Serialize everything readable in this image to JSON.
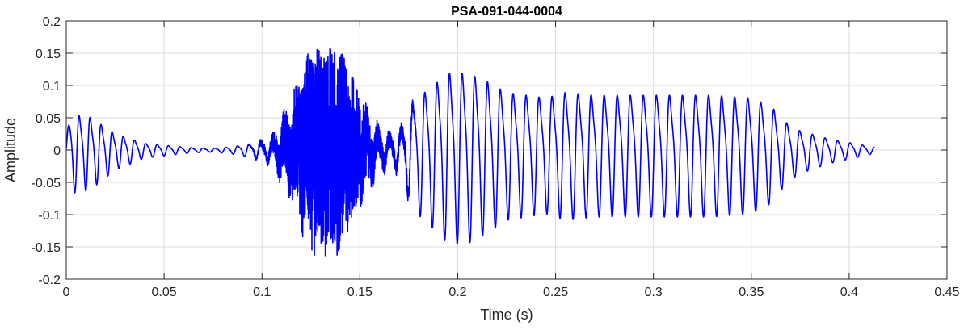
{
  "chart_data": {
    "type": "line",
    "title": "PSA-091-044-0004",
    "xlabel": "Time (s)",
    "ylabel": "Amplitude",
    "xlim": [
      0,
      0.45
    ],
    "ylim": [
      -0.2,
      0.2
    ],
    "xticks": [
      0,
      0.05,
      0.1,
      0.15,
      0.2,
      0.25,
      0.3,
      0.35,
      0.4,
      0.45
    ],
    "xtick_labels": [
      "0",
      "0.05",
      "0.1",
      "0.15",
      "0.2",
      "0.25",
      "0.3",
      "0.35",
      "0.4",
      "0.45"
    ],
    "yticks": [
      -0.2,
      -0.15,
      -0.1,
      -0.05,
      0,
      0.05,
      0.1,
      0.15,
      0.2
    ],
    "ytick_labels": [
      "-0.2",
      "-0.15",
      "-0.1",
      "-0.05",
      "0",
      "0.05",
      "0.1",
      "0.15",
      "0.2"
    ],
    "grid": true,
    "series": [
      {
        "color": "#0000ff",
        "duration": 0.413,
        "envelope": {
          "t": [
            0,
            0.002,
            0.012,
            0.025,
            0.04,
            0.055,
            0.065,
            0.075,
            0.085,
            0.095,
            0.105,
            0.115,
            0.125,
            0.13,
            0.14,
            0.15,
            0.158,
            0.165,
            0.17,
            0.175,
            0.185,
            0.195,
            0.205,
            0.215,
            0.225,
            0.235,
            0.245,
            0.255,
            0.27,
            0.3,
            0.33,
            0.35,
            0.36,
            0.368,
            0.375,
            0.39,
            0.413
          ],
          "amp": [
            0.02,
            0.065,
            0.06,
            0.03,
            0.012,
            0.007,
            0.004,
            0.003,
            0.006,
            0.012,
            0.028,
            0.09,
            0.16,
            0.17,
            0.16,
            0.1,
            0.05,
            0.035,
            0.04,
            0.085,
            0.11,
            0.14,
            0.14,
            0.125,
            0.105,
            0.1,
            0.095,
            0.105,
            0.1,
            0.1,
            0.1,
            0.095,
            0.08,
            0.05,
            0.035,
            0.02,
            0.005
          ]
        },
        "noise": {
          "t": [
            0,
            0.09,
            0.1,
            0.11,
            0.12,
            0.13,
            0.14,
            0.15,
            0.16,
            0.17,
            0.18,
            0.413
          ],
          "level": [
            0,
            0,
            0.3,
            0.6,
            0.85,
            0.9,
            0.9,
            0.8,
            0.5,
            0.3,
            0,
            0
          ]
        },
        "f0": {
          "t": [
            0,
            0.03,
            0.06,
            0.1,
            0.17,
            0.2,
            0.25,
            0.3,
            0.36,
            0.413
          ],
          "hz": [
            180,
            175,
            170,
            170,
            165,
            155,
            150,
            150,
            150,
            160
          ]
        }
      }
    ]
  }
}
